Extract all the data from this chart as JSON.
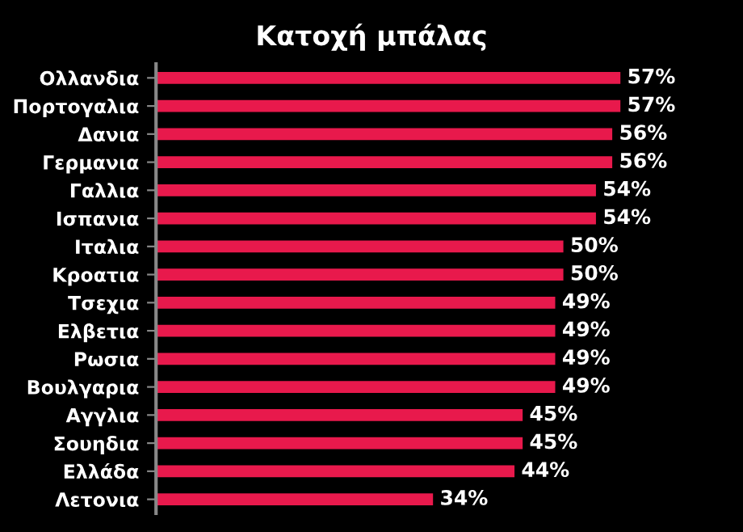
{
  "chart_data": {
    "type": "bar",
    "orientation": "horizontal",
    "title": "Κατοχή μπάλας",
    "categories": [
      "Ολλανδια",
      "Πορτογαλια",
      "Δανια",
      "Γερμανια",
      "Γαλλια",
      "Ισπανια",
      "Ιταλια",
      "Κροατια",
      "Τσεχια",
      "Ελβετια",
      "Ρωσια",
      "Βουλγαρια",
      "Αγγλια",
      "Σουηδια",
      "Ελλάδα",
      "Λετονια"
    ],
    "values": [
      57,
      57,
      56,
      56,
      54,
      54,
      50,
      50,
      49,
      49,
      49,
      49,
      45,
      45,
      44,
      34
    ],
    "value_labels": [
      "57%",
      "57%",
      "56%",
      "56%",
      "54%",
      "54%",
      "50%",
      "50%",
      "49%",
      "49%",
      "49%",
      "49%",
      "45%",
      "45%",
      "44%",
      "34%"
    ],
    "color": "#e8194c",
    "grid": false,
    "legend": false
  }
}
